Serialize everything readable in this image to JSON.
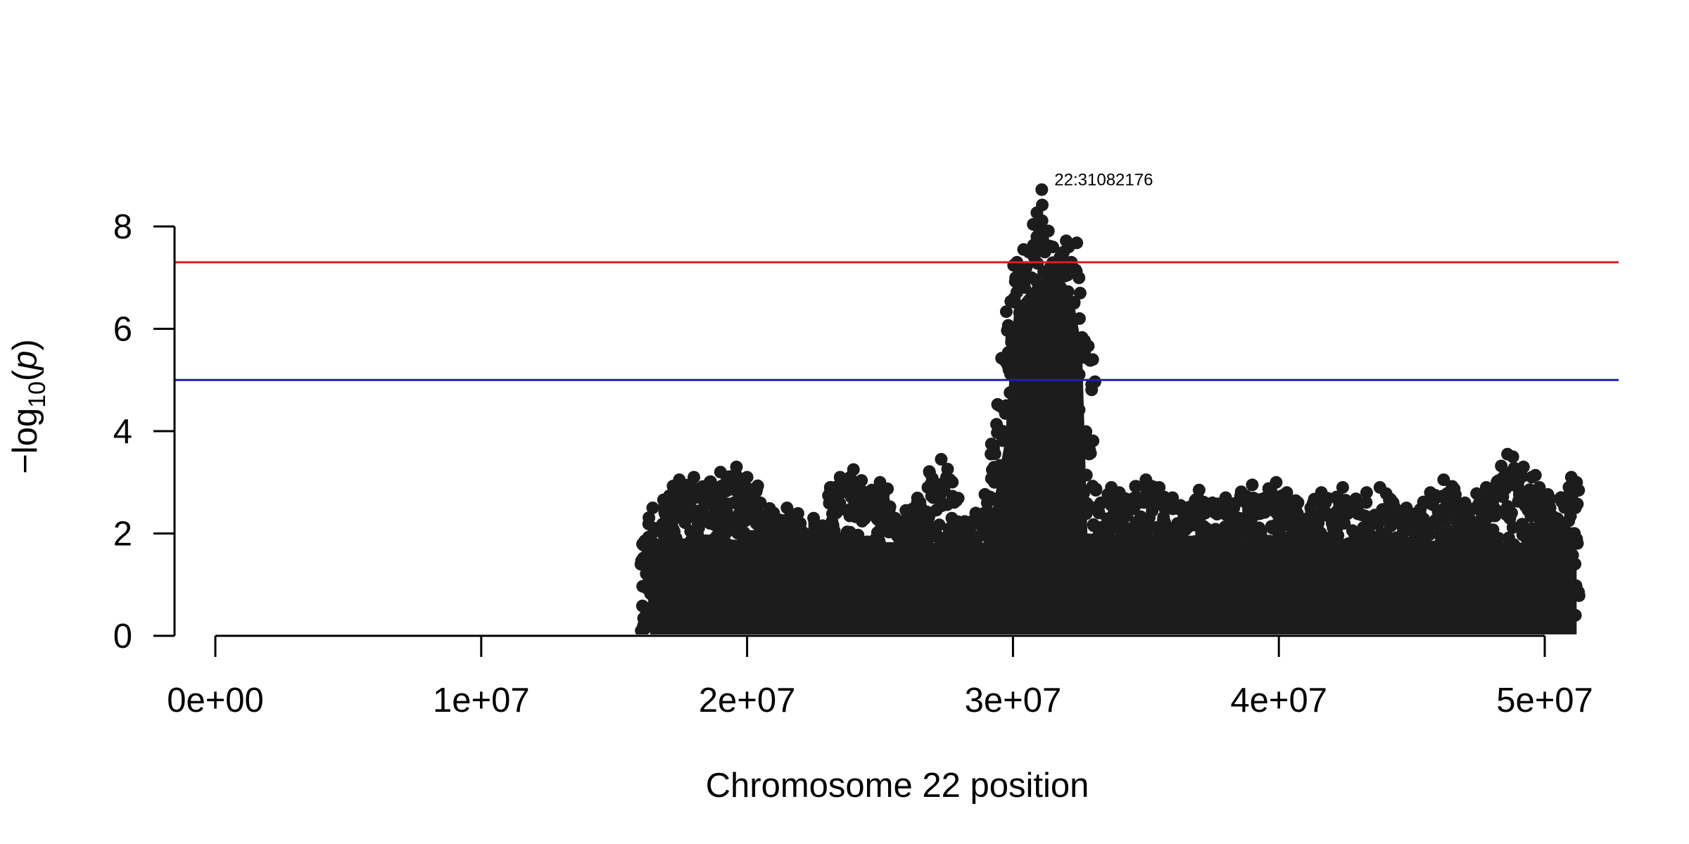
{
  "chart_data": {
    "type": "scatter",
    "title": "",
    "xlabel": "Chromosome 22 position",
    "ylabel": {
      "prefix": "−log",
      "sub": "10",
      "open": "(",
      "var": "p",
      "close": ")"
    },
    "xlim": [
      0,
      51300000
    ],
    "ylim": [
      0,
      8
    ],
    "x_ticks": [
      0,
      10000000,
      20000000,
      30000000,
      40000000,
      50000000
    ],
    "x_tick_labels": [
      "0e+00",
      "1e+07",
      "2e+07",
      "3e+07",
      "4e+07",
      "5e+07"
    ],
    "y_ticks": [
      0,
      2,
      4,
      6,
      8
    ],
    "y_tick_labels": [
      "0",
      "2",
      "4",
      "6",
      "8"
    ],
    "grid": false,
    "point_color": "#1c1c1c",
    "thresholds": [
      {
        "value": 7.3,
        "color": "#e31a1c"
      },
      {
        "value": 5.0,
        "color": "#1f1fb4"
      }
    ],
    "annotations": [
      {
        "label": "22:31082176",
        "x": 31082176,
        "y": 8.72
      }
    ],
    "points_x": [
      16020000,
      16100000,
      16200000,
      16350000,
      16450000,
      16500000,
      16550000,
      16700000,
      17000000,
      17300000,
      17450000,
      17500000,
      17550000,
      17600000,
      17900000,
      18000000,
      18100000,
      18600000,
      18900000,
      19000000,
      19100000,
      19500000,
      19600000,
      19700000,
      19800000,
      20000000,
      20100000,
      20500000,
      21000000,
      21500000,
      22000000,
      22500000,
      23000000,
      23500000,
      23900000,
      24000000,
      24100000,
      24500000,
      25000000,
      25200000,
      25600000,
      26000000,
      26400000,
      26800000,
      27000000,
      27300000,
      27500000,
      27700000,
      28000000,
      28300000,
      28600000,
      29000000,
      29300000,
      29600000,
      29750000,
      29850000,
      29950000,
      30050000,
      30100000,
      30150000,
      30250000,
      30300000,
      30400000,
      30500000,
      30600000,
      30700000,
      30800000,
      30900000,
      31000000,
      31050000,
      31082176,
      31100000,
      31200000,
      31300000,
      31400000,
      31500000,
      31600000,
      31700000,
      31800000,
      31900000,
      32000000,
      32100000,
      32200000,
      32300000,
      32400000,
      32500000,
      32600000,
      32700000,
      33000000,
      33300000,
      33700000,
      34000000,
      34500000,
      35000000,
      35500000,
      35700000,
      36000000,
      36500000,
      37000000,
      37500000,
      38000000,
      38500000,
      39000000,
      39500000,
      39900000,
      40300000,
      40800000,
      41200000,
      41600000,
      42000000,
      42400000,
      42800000,
      43300000,
      43800000,
      44300000,
      44800000,
      45200000,
      45700000,
      46200000,
      46600000,
      47000000,
      47400000,
      47800000,
      48200000,
      48600000,
      48800000,
      49000000,
      49200000,
      49500000,
      49800000,
      50200000,
      50600000,
      51000000,
      51100000,
      51200000
    ],
    "points_y": [
      0.1,
      0.2,
      0.5,
      1.4,
      2.5,
      1.8,
      2.1,
      1.6,
      2.0,
      2.8,
      3.05,
      2.6,
      2.9,
      2.4,
      2.7,
      3.1,
      2.3,
      2.2,
      2.4,
      3.2,
      2.9,
      2.6,
      3.3,
      3.0,
      2.8,
      3.1,
      2.5,
      2.6,
      2.4,
      2.5,
      2.2,
      2.3,
      2.1,
      3.1,
      2.4,
      3.25,
      2.9,
      2.6,
      3.0,
      2.4,
      2.2,
      2.1,
      2.6,
      2.9,
      2.7,
      3.45,
      3.1,
      2.3,
      2.0,
      1.9,
      2.4,
      2.2,
      3.0,
      4.0,
      4.5,
      5.2,
      5.8,
      6.6,
      7.0,
      7.3,
      7.2,
      6.9,
      7.55,
      7.2,
      7.5,
      7.0,
      7.4,
      7.8,
      7.9,
      8.1,
      8.72,
      8.42,
      7.5,
      7.6,
      7.2,
      7.6,
      7.0,
      7.2,
      6.8,
      7.5,
      7.72,
      7.6,
      7.3,
      6.5,
      7.68,
      6.2,
      5.8,
      5.5,
      2.5,
      2.6,
      2.9,
      2.8,
      2.6,
      3.05,
      2.9,
      2.5,
      2.7,
      2.4,
      2.85,
      2.6,
      2.7,
      2.3,
      2.95,
      2.7,
      3.0,
      2.8,
      2.3,
      2.5,
      2.8,
      2.2,
      2.9,
      2.6,
      2.8,
      2.9,
      2.6,
      2.5,
      2.4,
      2.8,
      3.05,
      2.7,
      2.6,
      2.5,
      2.9,
      3.0,
      3.55,
      3.5,
      3.0,
      3.3,
      2.7,
      2.9,
      2.5,
      2.2,
      3.1,
      2.8,
      3.0
    ]
  }
}
